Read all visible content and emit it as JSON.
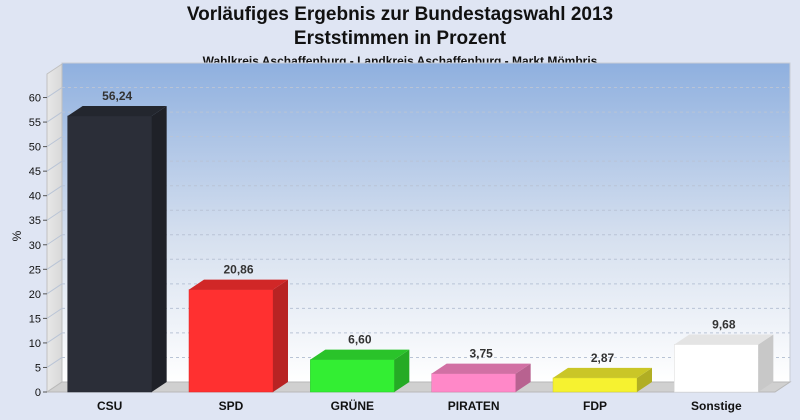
{
  "chart_data": {
    "type": "bar",
    "title": "Vorläufiges Ergebnis zur Bundestagswahl 2013",
    "title_line2": "Erststimmen in Prozent",
    "subtitle": "Wahlkreis Aschaffenburg - Landkreis Aschaffenburg - Markt Mömbris",
    "ylabel": "%",
    "xlabel": "",
    "ylim": [
      0,
      65
    ],
    "yticks": [
      0,
      5,
      10,
      15,
      20,
      25,
      30,
      35,
      40,
      45,
      50,
      55,
      60
    ],
    "grid": true,
    "categories": [
      "CSU",
      "SPD",
      "GRÜNE",
      "PIRATEN",
      "FDP",
      "Sonstige"
    ],
    "values": [
      56.24,
      20.86,
      6.6,
      3.75,
      2.87,
      9.68
    ],
    "value_labels": [
      "56,24",
      "20,86",
      "6,60",
      "3,75",
      "2,87",
      "9,68"
    ],
    "colors": [
      "#2b2e38",
      "#ff3030",
      "#33ee33",
      "#ff88c8",
      "#f6f230",
      "#ffffff"
    ]
  }
}
